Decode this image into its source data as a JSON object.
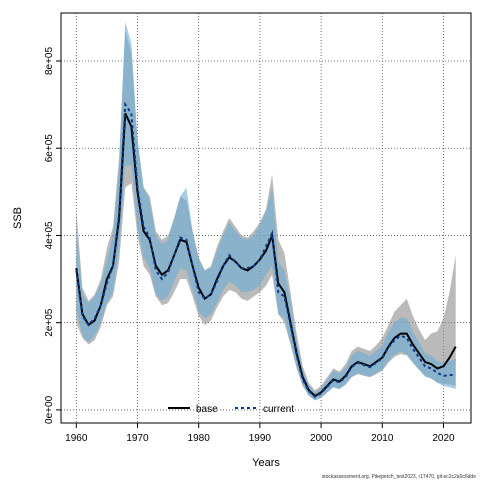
{
  "chart_data": {
    "type": "line",
    "xlabel": "Years",
    "ylabel": "SSB",
    "xlim": [
      1957.5,
      2024.5
    ],
    "ylim": [
      -30000,
      910000
    ],
    "x_ticks": [
      1960,
      1970,
      1980,
      1990,
      2000,
      2010,
      2020
    ],
    "x_tick_labels": [
      "1960",
      "1970",
      "1980",
      "1990",
      "2000",
      "2010",
      "2020"
    ],
    "y_ticks": [
      0,
      200000,
      400000,
      600000,
      800000
    ],
    "y_tick_labels": [
      "0e+00",
      "2e+05",
      "4e+05",
      "6e+05",
      "8e+05"
    ],
    "grid": true,
    "legend_position": "bottom",
    "footer": "stockassessment.org, Pikeperch_test2023, r17470, git:ec2c2a0c6dde",
    "x": [
      1960,
      1961,
      1962,
      1963,
      1964,
      1965,
      1966,
      1967,
      1968,
      1969,
      1970,
      1971,
      1972,
      1973,
      1974,
      1975,
      1976,
      1977,
      1978,
      1979,
      1980,
      1981,
      1982,
      1983,
      1984,
      1985,
      1986,
      1987,
      1988,
      1989,
      1990,
      1991,
      1992,
      1993,
      1994,
      1995,
      1996,
      1997,
      1998,
      1999,
      2000,
      2001,
      2002,
      2003,
      2004,
      2005,
      2006,
      2007,
      2008,
      2009,
      2010,
      2011,
      2012,
      2013,
      2014,
      2015,
      2016,
      2017,
      2018,
      2019,
      2020,
      2021,
      2022
    ],
    "series": [
      {
        "name": "base",
        "color": "#000000",
        "band_color": "#8c8c8c",
        "values": [
          325000,
          220000,
          195000,
          205000,
          240000,
          300000,
          330000,
          440000,
          680000,
          650000,
          500000,
          410000,
          390000,
          330000,
          310000,
          320000,
          355000,
          390000,
          385000,
          330000,
          280000,
          255000,
          265000,
          300000,
          330000,
          350000,
          340000,
          325000,
          320000,
          330000,
          345000,
          365000,
          400000,
          290000,
          270000,
          200000,
          130000,
          75000,
          45000,
          32000,
          40000,
          55000,
          70000,
          65000,
          78000,
          100000,
          110000,
          105000,
          100000,
          110000,
          120000,
          145000,
          165000,
          175000,
          175000,
          150000,
          130000,
          110000,
          105000,
          95000,
          100000,
          120000,
          145000
        ],
        "lower": [
          200000,
          165000,
          150000,
          160000,
          190000,
          240000,
          260000,
          340000,
          510000,
          520000,
          400000,
          330000,
          310000,
          260000,
          240000,
          245000,
          270000,
          300000,
          300000,
          260000,
          215000,
          195000,
          205000,
          235000,
          260000,
          275000,
          270000,
          255000,
          250000,
          260000,
          270000,
          285000,
          310000,
          220000,
          200000,
          150000,
          95000,
          55000,
          32000,
          22000,
          28000,
          40000,
          52000,
          48000,
          58000,
          75000,
          82000,
          78000,
          75000,
          82000,
          90000,
          108000,
          122000,
          128000,
          125000,
          108000,
          92000,
          78000,
          72000,
          62000,
          60000,
          58000,
          55000
        ],
        "upper": [
          460000,
          280000,
          250000,
          265000,
          300000,
          370000,
          420000,
          580000,
          870000,
          820000,
          620000,
          510000,
          490000,
          410000,
          390000,
          400000,
          440000,
          490000,
          480000,
          410000,
          350000,
          320000,
          330000,
          375000,
          410000,
          440000,
          420000,
          400000,
          395000,
          410000,
          430000,
          460000,
          540000,
          390000,
          360000,
          270000,
          175000,
          100000,
          62000,
          45000,
          55000,
          75000,
          95000,
          88000,
          105000,
          135000,
          145000,
          140000,
          135000,
          148000,
          165000,
          195000,
          225000,
          240000,
          255000,
          215000,
          185000,
          160000,
          175000,
          180000,
          210000,
          270000,
          355000
        ]
      },
      {
        "name": "current",
        "color": "#0a3c8c",
        "band_color": "#6aaed6",
        "values": [
          320000,
          215000,
          195000,
          210000,
          240000,
          290000,
          330000,
          450000,
          700000,
          680000,
          510000,
          420000,
          395000,
          320000,
          300000,
          315000,
          355000,
          395000,
          390000,
          330000,
          270000,
          255000,
          265000,
          295000,
          330000,
          355000,
          340000,
          325000,
          325000,
          330000,
          345000,
          375000,
          405000,
          270000,
          260000,
          195000,
          125000,
          70000,
          43000,
          30000,
          38000,
          53000,
          68000,
          63000,
          75000,
          98000,
          108000,
          103000,
          98000,
          108000,
          118000,
          143000,
          160000,
          170000,
          165000,
          140000,
          120000,
          100000,
          95000,
          85000,
          78000,
          80000,
          80000
        ],
        "lower": [
          230000,
          170000,
          155000,
          170000,
          200000,
          245000,
          270000,
          370000,
          560000,
          560000,
          420000,
          350000,
          325000,
          265000,
          250000,
          260000,
          295000,
          325000,
          320000,
          275000,
          225000,
          210000,
          220000,
          245000,
          275000,
          295000,
          285000,
          270000,
          270000,
          275000,
          285000,
          310000,
          330000,
          220000,
          210000,
          155000,
          100000,
          55000,
          33000,
          22000,
          28000,
          40000,
          52000,
          48000,
          58000,
          76000,
          84000,
          80000,
          76000,
          84000,
          92000,
          112000,
          126000,
          134000,
          128000,
          108000,
          92000,
          76000,
          72000,
          63000,
          55000,
          52000,
          48000
        ],
        "upper": [
          420000,
          265000,
          245000,
          260000,
          290000,
          345000,
          400000,
          560000,
          890000,
          840000,
          620000,
          510000,
          480000,
          400000,
          380000,
          390000,
          440000,
          490000,
          510000,
          410000,
          345000,
          320000,
          325000,
          365000,
          400000,
          430000,
          410000,
          395000,
          390000,
          400000,
          425000,
          455000,
          510000,
          340000,
          320000,
          250000,
          160000,
          92000,
          57000,
          40000,
          50000,
          70000,
          90000,
          83000,
          97000,
          125000,
          136000,
          130000,
          124000,
          136000,
          148000,
          178000,
          200000,
          212000,
          210000,
          180000,
          155000,
          130000,
          125000,
          112000,
          108000,
          112000,
          118000
        ]
      }
    ]
  }
}
